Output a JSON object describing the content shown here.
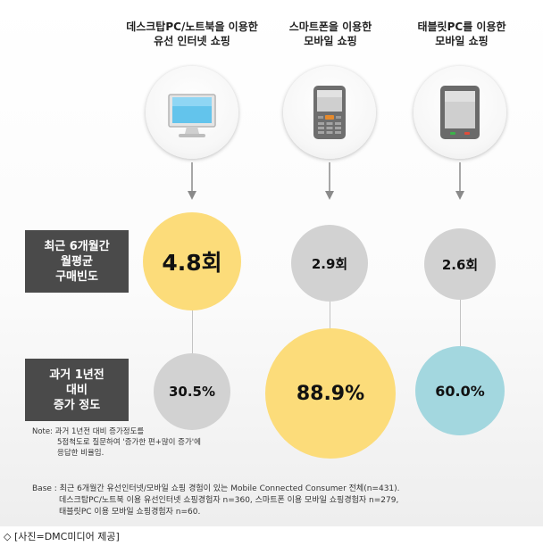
{
  "columns": [
    {
      "title_line1": "데스크탑PC/노트북을 이용한",
      "title_line2": "유선 인터넷 쇼핑",
      "device_icon": "desktop-monitor-icon"
    },
    {
      "title_line1": "스마트폰을 이용한",
      "title_line2": "모바일 쇼핑",
      "device_icon": "smartphone-icon"
    },
    {
      "title_line1": "태블릿PC를 이용한",
      "title_line2": "모바일 쇼핑",
      "device_icon": "tablet-icon"
    }
  ],
  "row_labels": {
    "frequency": [
      "최근 6개월간",
      "월평균",
      "구매빈도"
    ],
    "growth": [
      "과거 1년전",
      "대비",
      "증가 정도"
    ]
  },
  "colors": {
    "highlight_yellow": "#fcdc7a",
    "neutral_grey": "#d2d2d2",
    "teal": "#a3d7df",
    "label_box": "#4a4a4a"
  },
  "chart_data": {
    "type": "table",
    "categories": [
      "데스크탑PC/노트북을 이용한 유선 인터넷 쇼핑",
      "스마트폰을 이용한 모바일 쇼핑",
      "태블릿PC를 이용한 모바일 쇼핑"
    ],
    "series": [
      {
        "name": "최근 6개월간 월평균 구매빈도",
        "values": [
          4.8,
          2.9,
          2.6
        ],
        "labels": [
          "4.8회",
          "2.9회",
          "2.6회"
        ]
      },
      {
        "name": "과거 1년전 대비 증가 정도",
        "values": [
          30.5,
          88.9,
          60.0
        ],
        "labels": [
          "30.5%",
          "88.9%",
          "60.0%"
        ]
      }
    ]
  },
  "note": {
    "line1": "Note: 과거 1년전 대비 증가정도를",
    "line2": "5점척도로 질문하여 '증가한 편+많이 증가'에",
    "line3": "응답한 비율임."
  },
  "base": {
    "line1": "Base : 최근 6개월간 유선인터넷/모바일 쇼핑 경험이 있는 Mobile Connected Consumer 전체(n=431).",
    "line2": "데스크탑PC/노트북 이용 유선인터넷 쇼핑경험자 n=360, 스마트폰 이용 모바일 쇼핑경험자 n=279,",
    "line3": "태블릿PC 이용 모바일 쇼핑경험자 n=60."
  },
  "caption": "◇ [사진=DMC미디어 제공]"
}
